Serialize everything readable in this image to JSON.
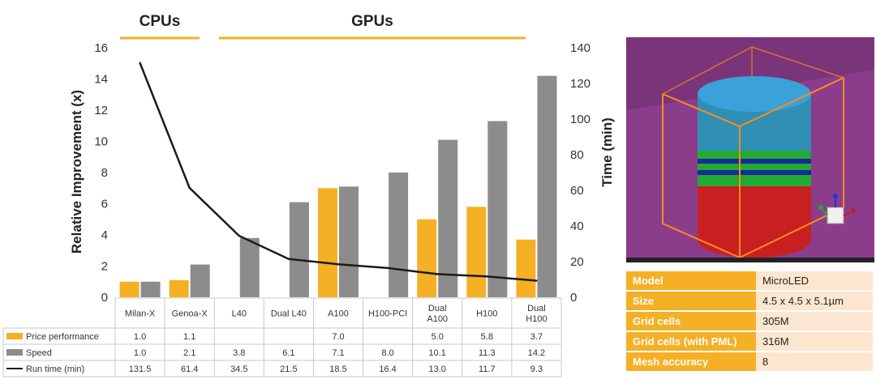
{
  "chart_data": {
    "type": "bar+line",
    "group_labels": [
      "CPUs",
      "GPUs"
    ],
    "categories": [
      "Milan-X",
      "Genoa-X",
      "L40",
      "Dual L40",
      "A100",
      "H100-PCI",
      "Dual A100",
      "H100",
      "Dual H100"
    ],
    "category_lines": [
      [
        "Milan-X"
      ],
      [
        "Genoa-X"
      ],
      [
        "L40"
      ],
      [
        "Dual L40"
      ],
      [
        "A100"
      ],
      [
        "H100-PCI"
      ],
      [
        "Dual",
        "A100"
      ],
      [
        "H100"
      ],
      [
        "Dual",
        "H100"
      ]
    ],
    "series": [
      {
        "name": "Price performance",
        "type": "bar",
        "axis": "left",
        "color": "#f5b025",
        "values": [
          1.0,
          1.1,
          null,
          null,
          7.0,
          null,
          5.0,
          5.8,
          3.7
        ],
        "labels": [
          "1.0",
          "1.1",
          "",
          "",
          "7.0",
          "",
          "5.0",
          "5.8",
          "3.7"
        ]
      },
      {
        "name": "Speed",
        "type": "bar",
        "axis": "left",
        "color": "#8c8c8c",
        "values": [
          1.0,
          2.1,
          3.8,
          6.1,
          7.1,
          8.0,
          10.1,
          11.3,
          14.2
        ],
        "labels": [
          "1.0",
          "2.1",
          "3.8",
          "6.1",
          "7.1",
          "8.0",
          "10.1",
          "11.3",
          "14.2"
        ]
      },
      {
        "name": "Run time (min)",
        "type": "line",
        "axis": "right",
        "color": "#1a1a1a",
        "values": [
          131.5,
          61.4,
          34.5,
          21.5,
          18.5,
          16.4,
          13.0,
          11.7,
          9.3
        ],
        "labels": [
          "131.5",
          "61.4",
          "34.5",
          "21.5",
          "18.5",
          "16.4",
          "13.0",
          "11.7",
          "9.3"
        ]
      }
    ],
    "ylabel": "Relative Improvement (x)",
    "ylim": [
      0,
      16
    ],
    "yticks": [
      "0",
      "2",
      "4",
      "6",
      "8",
      "10",
      "12",
      "14",
      "16"
    ],
    "y2label": "Time (min)",
    "y2lim": [
      0,
      140
    ],
    "y2ticks": [
      "0",
      "20",
      "40",
      "60",
      "80",
      "100",
      "120",
      "140"
    ],
    "legend": "data-table-left",
    "gridlines": false
  },
  "info_table": {
    "rows": [
      {
        "key": "Model",
        "value": "MicroLED"
      },
      {
        "key": "Size",
        "value": "4.5 x 4.5 x 5.1µm"
      },
      {
        "key": "Grid cells",
        "value": "305M"
      },
      {
        "key": "Grid cells (with PML)",
        "value": "316M"
      },
      {
        "key": "Mesh accuracy",
        "value": "8"
      }
    ]
  },
  "render_colors": {
    "background": "#8b3d8b",
    "box_edge": "#ff8c1a",
    "cylinder_top": "#2a86c8",
    "band_green": "#22aa33",
    "band_blue": "#1a2a9a",
    "base_red": "#c81e1e"
  }
}
